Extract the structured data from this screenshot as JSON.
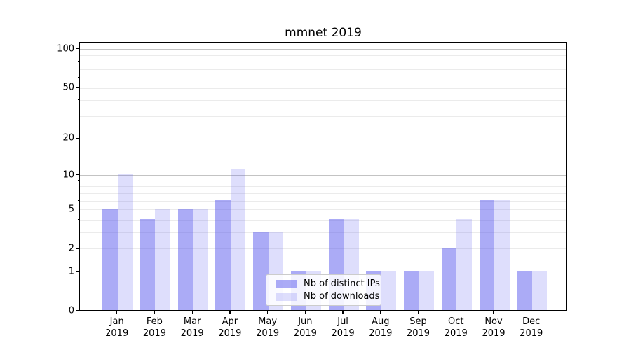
{
  "figure": {
    "title": "mmnet 2019"
  },
  "legend": {
    "items": [
      {
        "label": "Nb of distinct IPs",
        "swatch": "dark"
      },
      {
        "label": "Nb of downloads",
        "swatch": "light"
      }
    ]
  },
  "chart_data": {
    "type": "bar",
    "title": "mmnet 2019",
    "categories": [
      "Jan 2019",
      "Feb 2019",
      "Mar 2019",
      "Apr 2019",
      "May 2019",
      "Jun 2019",
      "Jul 2019",
      "Aug 2019",
      "Sep 2019",
      "Oct 2019",
      "Nov 2019",
      "Dec 2019"
    ],
    "series": [
      {
        "name": "Nb of distinct IPs",
        "values": [
          5,
          4,
          5,
          6,
          3,
          1,
          4,
          1,
          1,
          2,
          6,
          1
        ]
      },
      {
        "name": "Nb of downloads",
        "values": [
          10,
          5,
          5,
          11,
          3,
          1,
          4,
          1,
          1,
          4,
          6,
          1
        ]
      }
    ],
    "yscale": "log1p",
    "ylim": [
      0,
      113
    ],
    "y_major_ticks": [
      0,
      1,
      2,
      5,
      10,
      20,
      50,
      100
    ],
    "y_emphasized_gridlines": [
      1,
      10,
      100
    ],
    "y_minor_gridlines": [
      3,
      4,
      6,
      7,
      8,
      9,
      30,
      40,
      60,
      70,
      80,
      90
    ],
    "grid": "horizontal",
    "legend_position": "lower-center-inside"
  },
  "colors": {
    "bar_dark": "rgba(88,88,238,0.5)",
    "bar_light": "rgba(88,88,238,0.2)",
    "grid_major": "#c3c3c3",
    "grid_minor": "#ebebeb",
    "axis": "#000000",
    "background": "#ffffff"
  }
}
